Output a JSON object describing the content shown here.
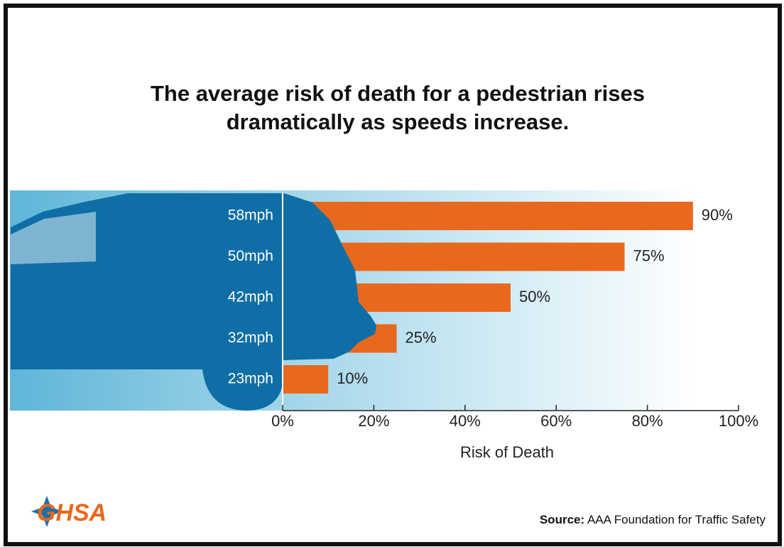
{
  "chart_data": {
    "type": "bar",
    "orientation": "horizontal",
    "title": "The average risk of death for a pedestrian rises dramatically as speeds increase.",
    "categories": [
      "58mph",
      "50mph",
      "42mph",
      "32mph",
      "23mph"
    ],
    "values": [
      90,
      75,
      50,
      25,
      10
    ],
    "value_labels": [
      "90%",
      "75%",
      "50%",
      "25%",
      "10%"
    ],
    "color": "#e8691e",
    "xlabel": "Risk of Death",
    "xlim": [
      0,
      100
    ],
    "xticks": [
      {
        "value": 0,
        "label": "0%"
      },
      {
        "value": 20,
        "label": "20%"
      },
      {
        "value": 40,
        "label": "40%"
      },
      {
        "value": 60,
        "label": "60%"
      },
      {
        "value": 80,
        "label": "80%"
      },
      {
        "value": 100,
        "label": "100%"
      }
    ],
    "source_label": "Source:",
    "source": "AAA Foundation for Traffic Safety",
    "logo": "GHSA"
  }
}
